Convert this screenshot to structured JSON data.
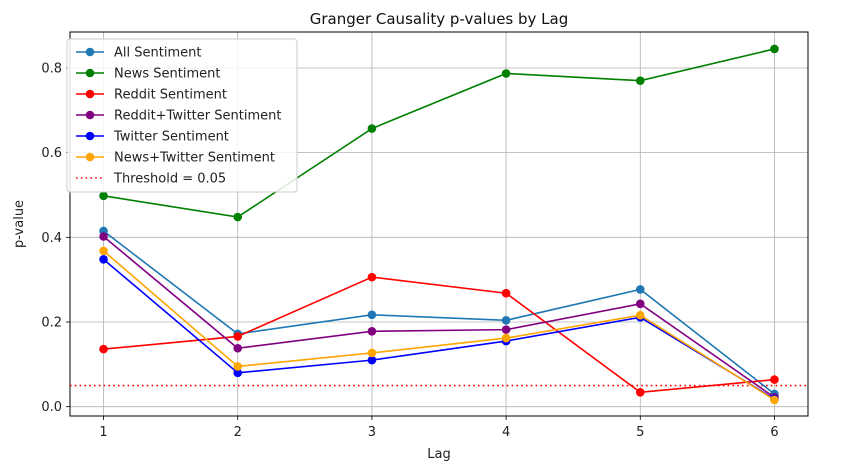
{
  "chart_data": {
    "type": "line",
    "title": "Granger Causality p-values by Lag",
    "xlabel": "Lag",
    "ylabel": "p-value",
    "x": [
      1,
      2,
      3,
      4,
      5,
      6
    ],
    "xticks": [
      "1",
      "2",
      "3",
      "4",
      "5",
      "6"
    ],
    "xlim": [
      0.75,
      6.25
    ],
    "ylim": [
      -0.022,
      0.885
    ],
    "yticks": [
      "0.0",
      "0.2",
      "0.4",
      "0.6",
      "0.8"
    ],
    "ytick_values": [
      0.0,
      0.2,
      0.4,
      0.6,
      0.8
    ],
    "grid": true,
    "legend_position": "top-left",
    "series": [
      {
        "name": "All Sentiment",
        "color": "#1f77b4",
        "values": [
          0.415,
          0.172,
          0.217,
          0.204,
          0.277,
          0.03
        ]
      },
      {
        "name": "News Sentiment",
        "color": "#008000",
        "values": [
          0.498,
          0.448,
          0.657,
          0.787,
          0.77,
          0.845
        ]
      },
      {
        "name": "Reddit Sentiment",
        "color": "#ff0000",
        "values": [
          0.136,
          0.166,
          0.306,
          0.268,
          0.034,
          0.064
        ]
      },
      {
        "name": "Reddit+Twitter Sentiment",
        "color": "#800080",
        "values": [
          0.402,
          0.138,
          0.178,
          0.182,
          0.243,
          0.022
        ]
      },
      {
        "name": "Twitter Sentiment",
        "color": "#0000ff",
        "values": [
          0.348,
          0.08,
          0.11,
          0.155,
          0.211,
          0.018
        ]
      },
      {
        "name": "News+Twitter Sentiment",
        "color": "#ffa500",
        "values": [
          0.368,
          0.095,
          0.127,
          0.162,
          0.216,
          0.016
        ]
      }
    ],
    "threshold": {
      "name": "Threshold = 0.05",
      "value": 0.05,
      "color": "#ff0000",
      "style": "dotted"
    }
  }
}
